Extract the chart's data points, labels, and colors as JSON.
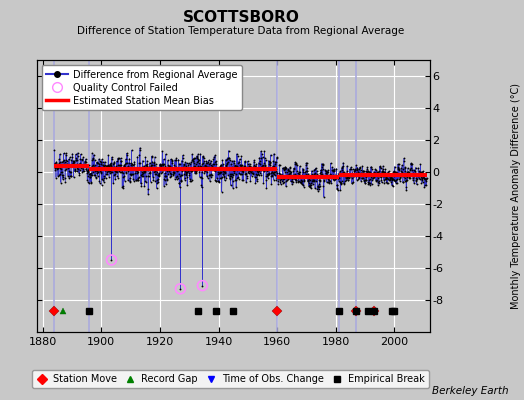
{
  "title": "SCOTTSBORO",
  "subtitle": "Difference of Station Temperature Data from Regional Average",
  "ylabel": "Monthly Temperature Anomaly Difference (°C)",
  "xlabel_years": [
    1880,
    1900,
    1920,
    1940,
    1960,
    1980,
    2000
  ],
  "ylim": [
    -10,
    7
  ],
  "yticks": [
    -8,
    -6,
    -4,
    -2,
    0,
    2,
    4,
    6
  ],
  "xlim": [
    1878,
    2012
  ],
  "bg_color": "#c8c8c8",
  "plot_bg_color": "#c8c8c8",
  "grid_color": "white",
  "data_line_color": "#3333cc",
  "data_dot_color": "black",
  "bias_color": "red",
  "qc_color": "#ff88ff",
  "vertical_line_color": "#aaaadd",
  "bias_segments": [
    {
      "x": [
        1884,
        1896
      ],
      "y": [
        0.35,
        0.35
      ]
    },
    {
      "x": [
        1896,
        1960
      ],
      "y": [
        0.2,
        0.2
      ]
    },
    {
      "x": [
        1960,
        1981
      ],
      "y": [
        -0.3,
        -0.3
      ]
    },
    {
      "x": [
        1981,
        1987
      ],
      "y": [
        -0.2,
        -0.2
      ]
    },
    {
      "x": [
        1987,
        2011
      ],
      "y": [
        -0.2,
        -0.2
      ]
    }
  ],
  "vertical_lines": [
    1884,
    1896,
    1960,
    1981,
    1987
  ],
  "station_moves": [
    1884,
    1960,
    1987,
    1993
  ],
  "record_gaps": [
    1887
  ],
  "obs_changes": [],
  "empirical_breaks": [
    1896,
    1933,
    1939,
    1945,
    1981,
    1987,
    1991,
    1993,
    1999,
    2000
  ],
  "marker_y": -8.7,
  "attribution": "Berkeley Earth",
  "random_seed": 7
}
